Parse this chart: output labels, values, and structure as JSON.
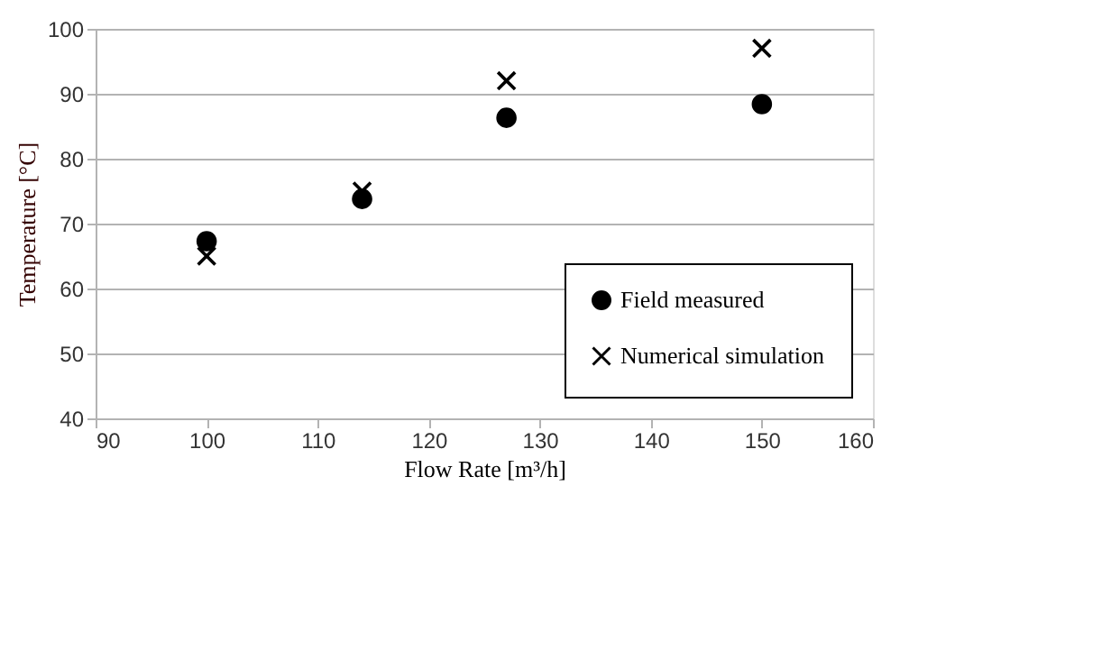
{
  "chart_data": {
    "type": "scatter",
    "xlabel": "Flow Rate [m³/h]",
    "ylabel": "Temperature [°C]",
    "xlim": [
      90,
      160
    ],
    "xticks": [
      90,
      100,
      110,
      120,
      130,
      140,
      150,
      160
    ],
    "ylim": [
      40,
      100
    ],
    "yticks": [
      40,
      50,
      60,
      70,
      80,
      90,
      100
    ],
    "grid": "y",
    "legend": "bottom right",
    "series": [
      {
        "name": "Field measured",
        "color": "#000000",
        "marker": "circle",
        "x": [
          100,
          114,
          127,
          150
        ],
        "values": [
          67.3,
          73.8,
          86.3,
          88.4
        ]
      },
      {
        "name": "Numerical simulation",
        "color": "#000000",
        "marker": "cross",
        "x": [
          100,
          114,
          127,
          150
        ],
        "values": [
          65,
          75,
          92,
          97
        ]
      }
    ]
  }
}
